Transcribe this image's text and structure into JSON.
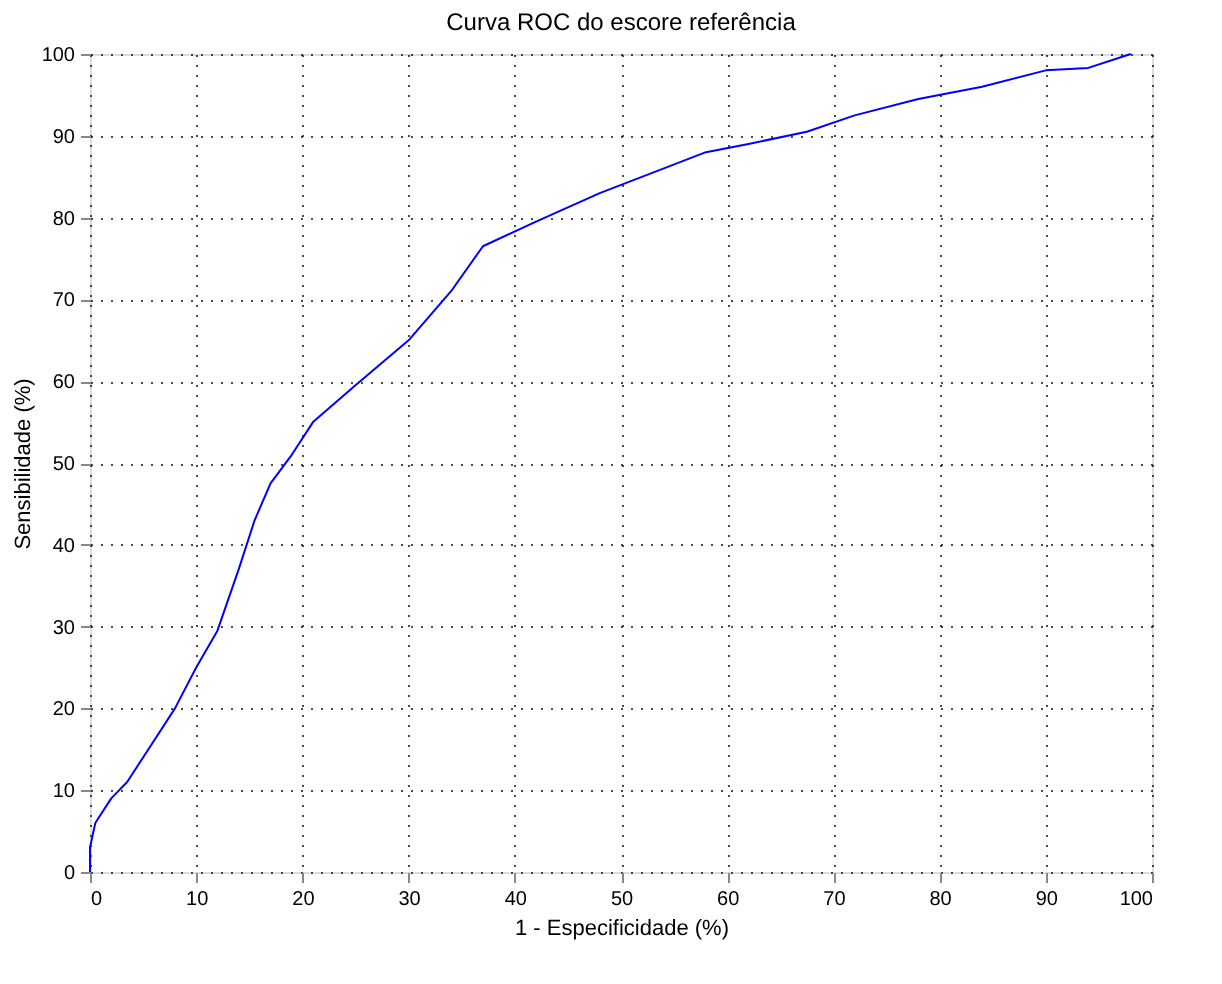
{
  "chart_data": {
    "type": "line",
    "title": "Curva ROC do escore referência",
    "xlabel": "1 - Especificidade (%)",
    "ylabel": "Sensibilidade (%)",
    "x": [
      0,
      0,
      0.5,
      2,
      3.5,
      5,
      8,
      10,
      12,
      14,
      15.5,
      17,
      19,
      21,
      25,
      30,
      34,
      37,
      42,
      48,
      53,
      58,
      62,
      67.5,
      72,
      78,
      84,
      90,
      94,
      98
    ],
    "series": [
      {
        "color": "#0000ff",
        "values": [
          0,
          3,
          6,
          9,
          11,
          14,
          20,
          25,
          29.5,
          37,
          43,
          47.5,
          51,
          55,
          59.5,
          65,
          71,
          76.5,
          79.5,
          83,
          85.5,
          88,
          89,
          90.5,
          92.5,
          94.5,
          96,
          98,
          98.3,
          100
        ]
      }
    ],
    "xlim": [
      0,
      100
    ],
    "ylim": [
      0,
      100
    ],
    "xticks": [
      0,
      10,
      20,
      30,
      40,
      50,
      60,
      70,
      80,
      90,
      100
    ],
    "yticks": [
      0,
      10,
      20,
      30,
      40,
      50,
      60,
      70,
      80,
      90,
      100
    ],
    "grid": true,
    "marker": "none",
    "line_style": "solid"
  }
}
